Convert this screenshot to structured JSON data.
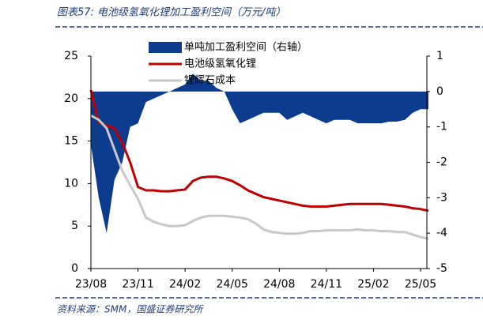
{
  "chart_data": {
    "type": "combo",
    "title": "图表57:  电池级氢氧化锂加工盈利空间（万元/吨）",
    "source": "资料来源：SMM，国盛证券研究所",
    "categories": [
      "23/08",
      null,
      null,
      null,
      null,
      null,
      "23/11",
      null,
      null,
      null,
      null,
      null,
      "24/02",
      null,
      null,
      null,
      null,
      null,
      "24/05",
      null,
      null,
      null,
      null,
      null,
      "24/08",
      null,
      null,
      null,
      null,
      null,
      "24/11",
      null,
      null,
      null,
      null,
      null,
      "25/02",
      null,
      null,
      null,
      null,
      null,
      "25/05",
      null
    ],
    "ylim": [
      0,
      25
    ],
    "yticks": [
      0,
      5,
      10,
      15,
      20,
      25
    ],
    "y2lim": [
      -5,
      1
    ],
    "y2ticks": [
      1,
      0,
      -1,
      -2,
      -3,
      -4,
      -5
    ],
    "series": [
      {
        "name": "单吨加工盈利空间（右轴）",
        "type": "area",
        "axis": "y2",
        "color": "#0d3c8f",
        "values": [
          -1.5,
          -3.0,
          -4.0,
          -2.5,
          -2.0,
          -1.0,
          -0.9,
          -0.3,
          -0.2,
          -0.1,
          0.0,
          0.1,
          0.2,
          0.5,
          0.3,
          0.3,
          0.1,
          0.0,
          -0.5,
          -0.9,
          -0.8,
          -0.7,
          -0.6,
          -0.6,
          -0.6,
          -0.8,
          -0.7,
          -0.6,
          -0.7,
          -0.8,
          -0.9,
          -0.8,
          -0.8,
          -0.8,
          -0.9,
          -0.9,
          -0.9,
          -0.9,
          -0.85,
          -0.85,
          -0.8,
          -0.6,
          -0.5,
          -0.5
        ]
      },
      {
        "name": "电池级氢氧化锂",
        "type": "line",
        "color": "#c00000",
        "values": [
          21,
          17.2,
          16.8,
          16.5,
          14.8,
          12.5,
          9.6,
          9.2,
          9.2,
          9.1,
          9.1,
          9.2,
          9.3,
          10.3,
          10.7,
          10.8,
          10.8,
          10.6,
          10.3,
          9.8,
          9.2,
          8.8,
          8.4,
          8.2,
          8.0,
          7.8,
          7.6,
          7.4,
          7.3,
          7.3,
          7.3,
          7.4,
          7.5,
          7.6,
          7.6,
          7.6,
          7.6,
          7.6,
          7.5,
          7.4,
          7.3,
          7.1,
          7.0,
          6.8
        ]
      },
      {
        "name": "锂辉石成本",
        "type": "line",
        "color": "#c8c8c8",
        "values": [
          18,
          17.5,
          16.5,
          14.0,
          11.5,
          9.8,
          8.2,
          6.0,
          5.5,
          5.2,
          5.0,
          5.0,
          5.1,
          5.6,
          6.0,
          6.2,
          6.2,
          6.2,
          6.1,
          6.0,
          5.8,
          5.3,
          4.6,
          4.3,
          4.2,
          4.1,
          4.1,
          4.2,
          4.4,
          4.4,
          4.5,
          4.5,
          4.5,
          4.5,
          4.6,
          4.5,
          4.5,
          4.4,
          4.4,
          4.3,
          4.3,
          4.0,
          3.7,
          3.5
        ]
      }
    ]
  }
}
